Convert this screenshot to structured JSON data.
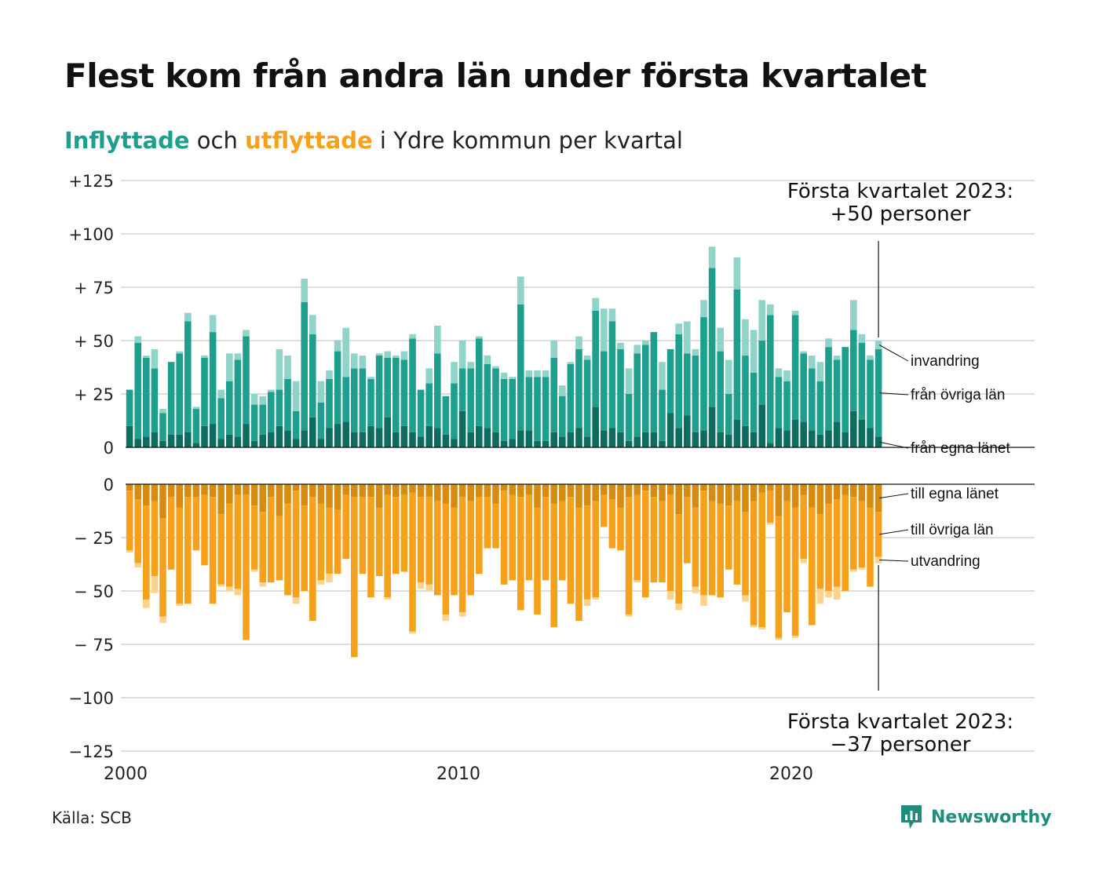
{
  "header": {
    "title": "Flest kom från andra län under första kvartalet",
    "subtitle_in": "Inflyttade",
    "subtitle_mid": " och ",
    "subtitle_out": "utflyttade",
    "subtitle_end": " i Ydre kommun per kvartal"
  },
  "footer": {
    "source": "Källa: SCB",
    "brand": "Newsworthy"
  },
  "colors": {
    "egna_in": "#0e6b60",
    "ovriga_in": "#1e9e8c",
    "invandring": "#8fd3c9",
    "egna_out": "#d68c10",
    "ovriga_out": "#f5a11b",
    "utvandring": "#fbd38c",
    "grid": "#dedede"
  },
  "chart_data": {
    "type": "bar",
    "stacked": true,
    "x_unit": "quarter",
    "x_start": "2000 Q1",
    "x_end": "2023 Q1",
    "xlim": [
      2000,
      2026.8
    ],
    "ylim": [
      -125,
      125
    ],
    "grid": true,
    "x_tick_labels": [
      "2000",
      "2010",
      "2020"
    ],
    "y_tick_labels_upper": [
      "+125",
      "+100",
      "+ 75",
      "+ 50",
      "+ 25",
      "0"
    ],
    "y_tick_labels_lower": [
      "0",
      "− 25",
      "− 50",
      "− 75",
      "−100",
      "−125"
    ],
    "series_in": [
      {
        "name": "från egna länet",
        "values": [
          10,
          4,
          5,
          7,
          3,
          6,
          6,
          7,
          2,
          10,
          11,
          4,
          6,
          5,
          11,
          3,
          6,
          7,
          10,
          8,
          4,
          8,
          14,
          4,
          9,
          11,
          12,
          7,
          7,
          10,
          9,
          14,
          7,
          10,
          7,
          5,
          10,
          9,
          6,
          4,
          17,
          7,
          10,
          9,
          7,
          3,
          4,
          8,
          8,
          3,
          3,
          7,
          5,
          7,
          9,
          5,
          19,
          8,
          9,
          7,
          3,
          5,
          7,
          7,
          3,
          16,
          9,
          15,
          7,
          8,
          19,
          7,
          6,
          13,
          10,
          7,
          20,
          2,
          9,
          8,
          13,
          12,
          8,
          6,
          8,
          12,
          7,
          17,
          13,
          9,
          5
        ]
      },
      {
        "name": "från övriga län",
        "values": [
          17,
          45,
          37,
          30,
          13,
          34,
          38,
          52,
          16,
          32,
          43,
          19,
          25,
          36,
          41,
          17,
          14,
          19,
          17,
          24,
          13,
          60,
          39,
          17,
          23,
          34,
          21,
          30,
          30,
          22,
          34,
          28,
          35,
          31,
          44,
          22,
          20,
          35,
          18,
          26,
          20,
          30,
          41,
          30,
          30,
          29,
          28,
          59,
          25,
          30,
          30,
          35,
          19,
          32,
          37,
          36,
          45,
          37,
          50,
          39,
          22,
          39,
          41,
          47,
          24,
          30,
          44,
          29,
          36,
          53,
          65,
          38,
          19,
          61,
          33,
          28,
          30,
          60,
          24,
          23,
          49,
          32,
          29,
          25,
          39,
          29,
          40,
          38,
          36,
          32,
          41
        ]
      },
      {
        "name": "invandring",
        "values": [
          0,
          3,
          1,
          9,
          2,
          0,
          1,
          4,
          1,
          1,
          8,
          4,
          13,
          3,
          3,
          5,
          4,
          1,
          19,
          11,
          14,
          11,
          9,
          10,
          4,
          5,
          23,
          7,
          6,
          1,
          1,
          3,
          1,
          4,
          2,
          0,
          7,
          13,
          0,
          10,
          13,
          3,
          1,
          4,
          1,
          3,
          1,
          13,
          3,
          3,
          3,
          8,
          5,
          1,
          6,
          2,
          6,
          20,
          6,
          3,
          12,
          4,
          2,
          0,
          13,
          0,
          5,
          15,
          3,
          8,
          10,
          11,
          16,
          15,
          17,
          20,
          19,
          5,
          4,
          5,
          2,
          1,
          6,
          9,
          4,
          2,
          0,
          14,
          4,
          2,
          4
        ]
      }
    ],
    "series_out": [
      {
        "name": "till egna länet",
        "values": [
          3,
          7,
          10,
          8,
          16,
          6,
          11,
          6,
          6,
          5,
          6,
          14,
          9,
          5,
          5,
          10,
          13,
          6,
          15,
          9,
          3,
          10,
          6,
          9,
          11,
          12,
          5,
          6,
          6,
          6,
          11,
          5,
          6,
          5,
          4,
          6,
          6,
          8,
          9,
          11,
          6,
          8,
          6,
          6,
          9,
          3,
          5,
          6,
          5,
          11,
          6,
          9,
          8,
          6,
          11,
          10,
          8,
          5,
          7,
          11,
          6,
          5,
          3,
          6,
          8,
          5,
          14,
          6,
          11,
          3,
          8,
          9,
          10,
          8,
          13,
          8,
          4,
          3,
          15,
          8,
          11,
          5,
          11,
          14,
          9,
          7,
          5,
          6,
          8,
          11,
          13
        ]
      },
      {
        "name": "till övriga län",
        "values": [
          28,
          30,
          44,
          35,
          46,
          34,
          45,
          50,
          25,
          33,
          50,
          33,
          39,
          44,
          68,
          30,
          33,
          40,
          30,
          43,
          50,
          40,
          58,
          36,
          31,
          30,
          30,
          75,
          36,
          47,
          32,
          48,
          36,
          36,
          65,
          40,
          41,
          44,
          52,
          41,
          54,
          44,
          36,
          24,
          21,
          44,
          40,
          53,
          40,
          50,
          39,
          58,
          37,
          50,
          53,
          44,
          45,
          15,
          23,
          20,
          55,
          40,
          50,
          40,
          38,
          45,
          42,
          31,
          37,
          49,
          44,
          44,
          30,
          39,
          39,
          58,
          63,
          15,
          57,
          52,
          60,
          30,
          55,
          35,
          41,
          41,
          45,
          34,
          31,
          37,
          21
        ]
      },
      {
        "name": "utvandring",
        "values": [
          1,
          2,
          4,
          8,
          3,
          0,
          1,
          0,
          0,
          0,
          0,
          1,
          2,
          3,
          0,
          1,
          2,
          0,
          0,
          0,
          3,
          0,
          0,
          2,
          4,
          0,
          0,
          0,
          0,
          0,
          0,
          1,
          0,
          0,
          1,
          3,
          3,
          0,
          3,
          0,
          2,
          0,
          0,
          0,
          0,
          0,
          0,
          0,
          0,
          0,
          0,
          0,
          0,
          0,
          0,
          3,
          1,
          0,
          0,
          0,
          1,
          1,
          0,
          0,
          0,
          4,
          3,
          0,
          3,
          5,
          0,
          0,
          0,
          0,
          3,
          1,
          1,
          1,
          1,
          0,
          1,
          2,
          0,
          7,
          3,
          6,
          0,
          1,
          1,
          0,
          3
        ]
      }
    ],
    "labels_right_upper": [
      "invandring",
      "från övriga län",
      "från egna länet"
    ],
    "labels_right_lower": [
      "till egna länet",
      "till övriga län",
      "utvandring"
    ],
    "annotation_upper_line1": "Första kvartalet 2023:",
    "annotation_upper_line2": "+50 personer",
    "annotation_lower_line1": "Första kvartalet 2023:",
    "annotation_lower_line2": "−37 personer"
  }
}
